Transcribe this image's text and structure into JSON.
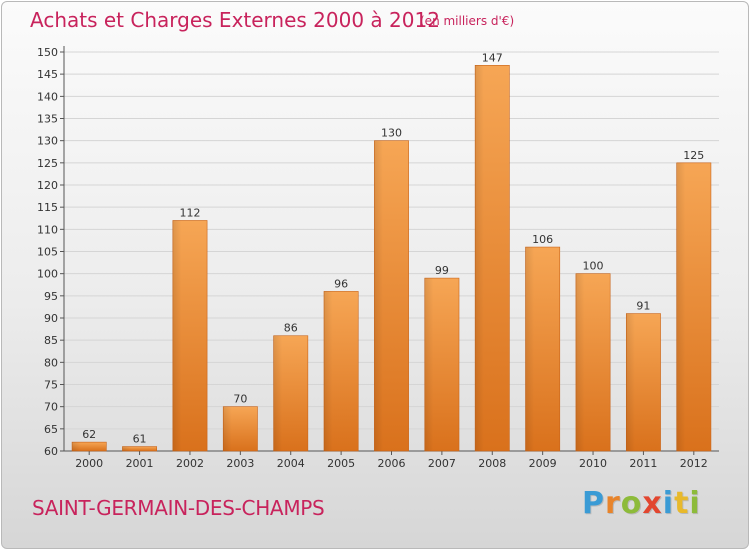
{
  "chart_data": {
    "type": "bar",
    "title": "Achats et Charges Externes 2000 à 2012",
    "unit_label": "(en milliers d'€)",
    "categories": [
      "2000",
      "2001",
      "2002",
      "2003",
      "2004",
      "2005",
      "2006",
      "2007",
      "2008",
      "2009",
      "2010",
      "2011",
      "2012"
    ],
    "values": [
      62,
      61,
      112,
      70,
      86,
      96,
      130,
      99,
      147,
      106,
      100,
      91,
      125
    ],
    "ylim": [
      60,
      150
    ],
    "yticks": [
      60,
      65,
      70,
      75,
      80,
      85,
      90,
      95,
      100,
      105,
      110,
      115,
      120,
      125,
      130,
      135,
      140,
      145,
      150
    ],
    "grid": true,
    "bar_color": "#f0913a"
  },
  "footer": {
    "location": "SAINT-GERMAIN-DES-CHAMPS",
    "brand": "Proxiti",
    "brand_letters": [
      {
        "ch": "P",
        "color": "#3a9bd5"
      },
      {
        "ch": "r",
        "color": "#e8842b"
      },
      {
        "ch": "o",
        "color": "#8dbb3a"
      },
      {
        "ch": "x",
        "color": "#e2462f"
      },
      {
        "ch": "i",
        "color": "#3a9bd5"
      },
      {
        "ch": "t",
        "color": "#e8b92b"
      },
      {
        "ch": "i",
        "color": "#8dbb3a"
      }
    ]
  }
}
